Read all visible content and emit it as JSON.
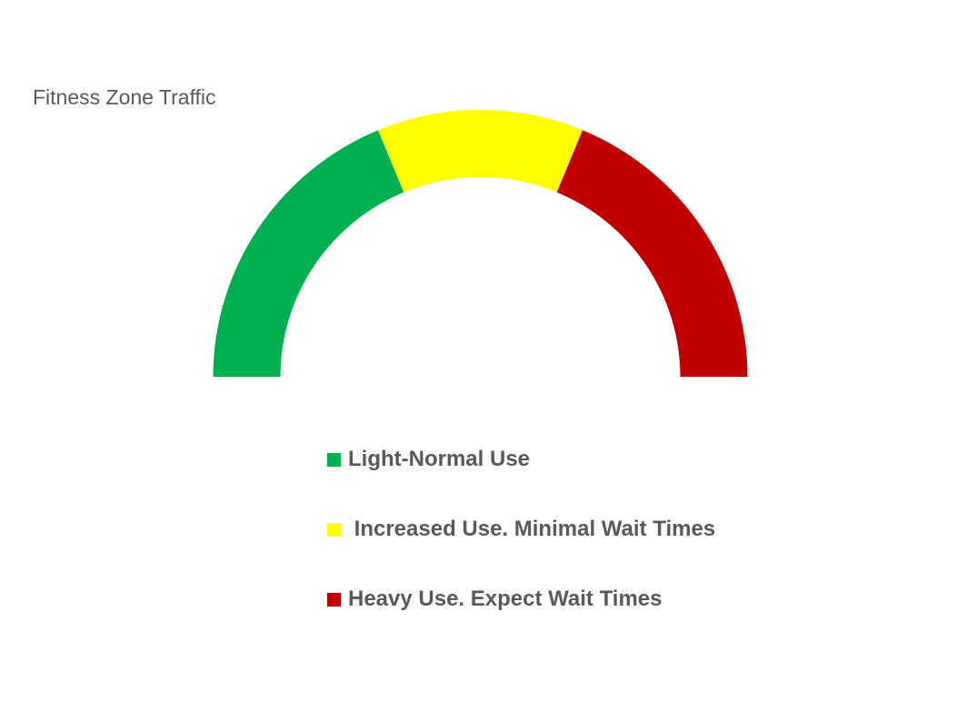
{
  "chart_data": {
    "type": "pie",
    "variant": "half-donut-gauge",
    "title": "Fitness Zone Traffic",
    "categories": [
      "Light-Normal Use",
      " Increased Use. Minimal Wait Times",
      "Heavy Use. Expect Wait Times"
    ],
    "values": [
      0.375,
      0.25,
      0.375
    ],
    "colors": [
      "#00B050",
      "#FFFF00",
      "#C00000"
    ],
    "legend_position": "bottom"
  }
}
